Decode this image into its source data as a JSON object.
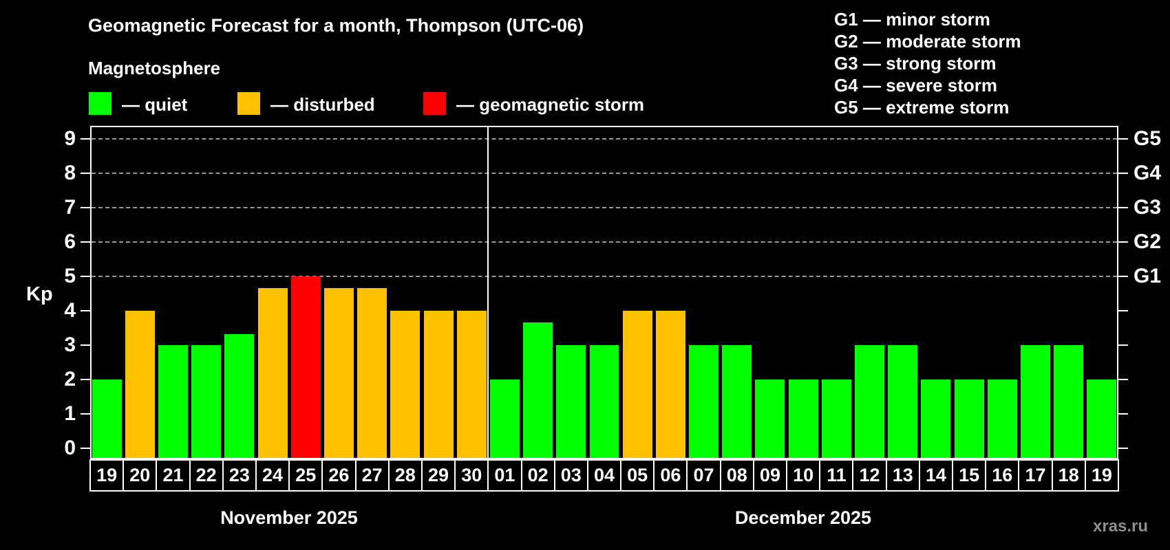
{
  "header": {
    "title": "Geomagnetic Forecast for a month, Thompson (UTC-06)",
    "subtitle": "Magnetosphere"
  },
  "legend": {
    "items": [
      {
        "state": "quiet",
        "label": "— quiet",
        "color": "#00ff00"
      },
      {
        "state": "disturbed",
        "label": "— disturbed",
        "color": "#ffc000"
      },
      {
        "state": "storm",
        "label": "— geomagnetic storm",
        "color": "#ff0000"
      }
    ]
  },
  "g_legend": {
    "items": [
      {
        "label": "G1 — minor storm"
      },
      {
        "label": "G2 — moderate storm"
      },
      {
        "label": "G3 — strong storm"
      },
      {
        "label": "G4 — severe storm"
      },
      {
        "label": "G5 — extreme storm"
      }
    ]
  },
  "watermark": "xras.ru",
  "chart_data": {
    "type": "bar",
    "title": "Geomagnetic Forecast for a month, Thompson (UTC-06)",
    "ylabel": "Kp",
    "ylim": [
      0,
      9.4
    ],
    "yticks": [
      0,
      1,
      2,
      3,
      4,
      5,
      6,
      7,
      8,
      9
    ],
    "gridlines_kp": [
      5,
      6,
      7,
      8,
      9
    ],
    "grid": "dashed horizontal at G-storm levels only",
    "right_axis": [
      {
        "kp": 5,
        "label": "G1"
      },
      {
        "kp": 6,
        "label": "G2"
      },
      {
        "kp": 7,
        "label": "G3"
      },
      {
        "kp": 8,
        "label": "G4"
      },
      {
        "kp": 9,
        "label": "G5"
      }
    ],
    "state_colors": {
      "quiet": "#00ff00",
      "disturbed": "#ffc000",
      "storm": "#ff0000"
    },
    "months": [
      {
        "label": "November 2025",
        "days": 12
      },
      {
        "label": "December 2025",
        "days": 19
      }
    ],
    "bars": [
      {
        "day": "19",
        "kp": 2,
        "state": "quiet"
      },
      {
        "day": "20",
        "kp": 4,
        "state": "disturbed"
      },
      {
        "day": "21",
        "kp": 3,
        "state": "quiet"
      },
      {
        "day": "22",
        "kp": 3,
        "state": "quiet"
      },
      {
        "day": "23",
        "kp": 3.33,
        "state": "quiet"
      },
      {
        "day": "24",
        "kp": 4.67,
        "state": "disturbed"
      },
      {
        "day": "25",
        "kp": 5,
        "state": "storm"
      },
      {
        "day": "26",
        "kp": 4.67,
        "state": "disturbed"
      },
      {
        "day": "27",
        "kp": 4.67,
        "state": "disturbed"
      },
      {
        "day": "28",
        "kp": 4,
        "state": "disturbed"
      },
      {
        "day": "29",
        "kp": 4,
        "state": "disturbed"
      },
      {
        "day": "30",
        "kp": 4,
        "state": "disturbed"
      },
      {
        "day": "01",
        "kp": 2,
        "state": "quiet"
      },
      {
        "day": "02",
        "kp": 3.67,
        "state": "quiet"
      },
      {
        "day": "03",
        "kp": 3,
        "state": "quiet"
      },
      {
        "day": "04",
        "kp": 3,
        "state": "quiet"
      },
      {
        "day": "05",
        "kp": 4,
        "state": "disturbed"
      },
      {
        "day": "06",
        "kp": 4,
        "state": "disturbed"
      },
      {
        "day": "07",
        "kp": 3,
        "state": "quiet"
      },
      {
        "day": "08",
        "kp": 3,
        "state": "quiet"
      },
      {
        "day": "09",
        "kp": 2,
        "state": "quiet"
      },
      {
        "day": "10",
        "kp": 2,
        "state": "quiet"
      },
      {
        "day": "11",
        "kp": 2,
        "state": "quiet"
      },
      {
        "day": "12",
        "kp": 3,
        "state": "quiet"
      },
      {
        "day": "13",
        "kp": 3,
        "state": "quiet"
      },
      {
        "day": "14",
        "kp": 2,
        "state": "quiet"
      },
      {
        "day": "15",
        "kp": 2,
        "state": "quiet"
      },
      {
        "day": "16",
        "kp": 2,
        "state": "quiet"
      },
      {
        "day": "17",
        "kp": 3,
        "state": "quiet"
      },
      {
        "day": "18",
        "kp": 3,
        "state": "quiet"
      },
      {
        "day": "19",
        "kp": 2,
        "state": "quiet"
      }
    ]
  }
}
